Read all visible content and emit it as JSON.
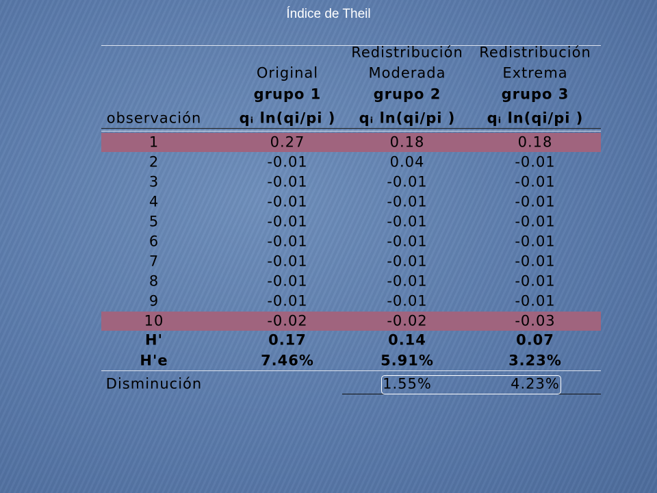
{
  "title": "Índice de Theil",
  "table": {
    "header": [
      [
        "observación"
      ],
      [
        "Original",
        "grupo 1",
        "qᵢ ln(qi/pi )"
      ],
      [
        "Redistribución",
        "Moderada",
        "grupo 2",
        "qᵢ ln(qi/pi )"
      ],
      [
        "Redistribución",
        "Extrema",
        "grupo 3",
        "qᵢ ln(qi/pi )"
      ]
    ],
    "rows": [
      [
        "1",
        "0.27",
        "0.18",
        "0.18"
      ],
      [
        "2",
        "-0.01",
        "0.04",
        "-0.01"
      ],
      [
        "3",
        "-0.01",
        "-0.01",
        "-0.01"
      ],
      [
        "4",
        "-0.01",
        "-0.01",
        "-0.01"
      ],
      [
        "5",
        "-0.01",
        "-0.01",
        "-0.01"
      ],
      [
        "6",
        "-0.01",
        "-0.01",
        "-0.01"
      ],
      [
        "7",
        "-0.01",
        "-0.01",
        "-0.01"
      ],
      [
        "8",
        "-0.01",
        "-0.01",
        "-0.01"
      ],
      [
        "9",
        "-0.01",
        "-0.01",
        "-0.01"
      ],
      [
        "10",
        "-0.02",
        "-0.02",
        "-0.03"
      ]
    ],
    "highlight_rows": [
      0,
      9
    ],
    "summary": [
      [
        "H'",
        "0.17",
        "0.14",
        "0.07"
      ],
      [
        "H'e",
        "7.46%",
        "5.91%",
        "3.23%"
      ]
    ],
    "decrease": {
      "label": "Disminución",
      "values": [
        "1.55%",
        "4.23%"
      ]
    }
  }
}
